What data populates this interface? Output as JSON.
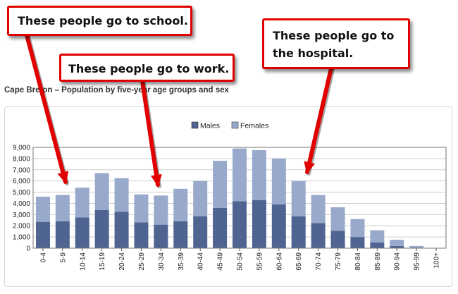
{
  "callouts": {
    "school": "These people go to school.",
    "work": "These people go to work.",
    "hospital": "These people go to the hospital."
  },
  "chart_data": {
    "type": "bar",
    "stacked": true,
    "title": "Cape Breton – Population by five-year age groups and sex",
    "legend_position": "top-center",
    "categories": [
      "0-4",
      "5-9",
      "10-14",
      "15-19",
      "20-24",
      "25-29",
      "30-34",
      "35-39",
      "40-44",
      "45-49",
      "50-54",
      "55-59",
      "60-64",
      "65-69",
      "70-74",
      "75-79",
      "80-84",
      "85-89",
      "90-94",
      "95-99",
      "100+"
    ],
    "series": [
      {
        "name": "Males",
        "color": "#4f6490",
        "values": [
          2350,
          2400,
          2750,
          3400,
          3250,
          2300,
          2100,
          2400,
          2850,
          3600,
          4200,
          4300,
          3900,
          2850,
          2250,
          1550,
          1000,
          500,
          200,
          50,
          0
        ]
      },
      {
        "name": "Females",
        "color": "#98a9cc",
        "values": [
          2250,
          2350,
          2650,
          3300,
          3000,
          2500,
          2600,
          2900,
          3150,
          4200,
          4700,
          4450,
          4100,
          3150,
          2500,
          2100,
          1600,
          1100,
          550,
          150,
          0
        ]
      }
    ],
    "ylim": [
      0,
      9000
    ],
    "yticks": [
      "0",
      "1,000",
      "2,000",
      "3,000",
      "4,000",
      "5,000",
      "6,000",
      "7,000",
      "8,000",
      "9,000"
    ],
    "grid": true
  }
}
